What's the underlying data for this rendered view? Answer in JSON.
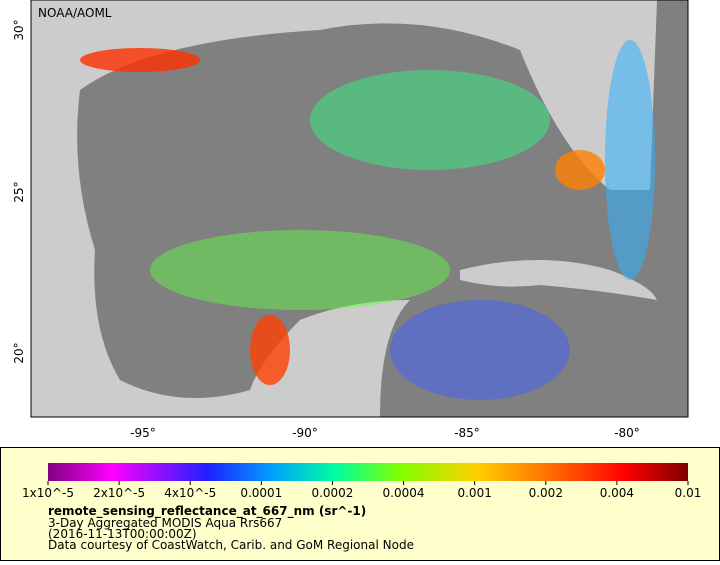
{
  "map": {
    "credit": "NOAA/AOML",
    "lat_labels": [
      "30°",
      "25°",
      "20°"
    ],
    "lon_labels": [
      "-95°",
      "-90°",
      "-85°",
      "-80°"
    ]
  },
  "colorbar": {
    "labels": [
      "1x10^-5",
      "2x10^-5",
      "4x10^-5",
      "0.0001",
      "0.0002",
      "0.0004",
      "0.001",
      "0.002",
      "0.004",
      "0.01"
    ]
  },
  "legend": {
    "title": "remote_sensing_reflectance_at_667_nm (sr^-1)",
    "lines": [
      "3-Day Aggregated MODIS Aqua Rrs667",
      "(2016-11-13T00:00:00Z)",
      "Data courtesy of CoastWatch, Carib. and GoM Regional Node"
    ]
  }
}
